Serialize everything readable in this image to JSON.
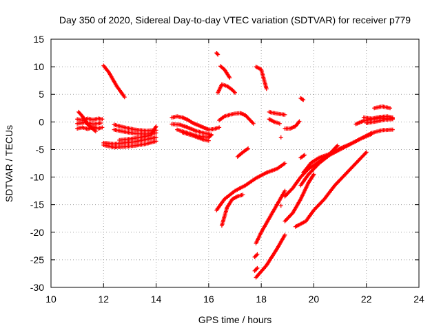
{
  "chart_data": {
    "type": "scatter",
    "title": "Day 350 of 2020, Sidereal Day-to-day VTEC variation (SDTVAR) for receiver p779",
    "xlabel": "GPS time / hours",
    "ylabel": "SDTVAR / TECUs",
    "xlim": [
      10,
      24
    ],
    "ylim": [
      -30,
      15
    ],
    "xticks": [
      10,
      12,
      14,
      16,
      18,
      20,
      22,
      24
    ],
    "yticks": [
      -30,
      -25,
      -20,
      -15,
      -10,
      -5,
      0,
      5,
      10,
      15
    ],
    "grid": true,
    "marker": "+",
    "marker_color": "#ff0000",
    "series": [
      {
        "x": [
          11.0,
          11.2,
          11.4,
          11.6,
          11.8,
          11.95
        ],
        "y": [
          0.5,
          0.3,
          0.6,
          0.4,
          0.6,
          0.5
        ]
      },
      {
        "x": [
          11.0,
          11.2,
          11.4,
          11.6,
          11.8,
          11.95
        ],
        "y": [
          -1.2,
          -1.0,
          -1.3,
          -0.9,
          -1.2,
          -1.0
        ]
      },
      {
        "x": [
          11.0,
          11.3,
          11.6,
          11.9
        ],
        "y": [
          -0.3,
          -0.1,
          -0.4,
          -0.2
        ]
      },
      {
        "x": [
          11.05,
          11.2,
          11.4,
          11.7
        ],
        "y": [
          1.8,
          1.0,
          -0.5,
          -1.7
        ]
      },
      {
        "x": [
          12.0,
          12.2,
          12.5,
          12.8
        ],
        "y": [
          10.2,
          9.0,
          6.5,
          4.5
        ]
      },
      {
        "x": [
          12.0,
          12.4,
          12.8,
          13.2,
          13.6,
          14.0
        ],
        "y": [
          -4.2,
          -4.6,
          -4.5,
          -4.3,
          -4.0,
          -3.5
        ]
      },
      {
        "x": [
          12.0,
          12.4,
          12.8,
          13.2,
          13.6,
          14.0
        ],
        "y": [
          -3.8,
          -4.0,
          -3.8,
          -3.6,
          -3.2,
          -2.8
        ]
      },
      {
        "x": [
          12.4,
          12.8,
          13.2,
          13.6,
          14.0
        ],
        "y": [
          -0.5,
          -1.0,
          -1.4,
          -1.6,
          -1.5
        ]
      },
      {
        "x": [
          12.4,
          12.8,
          13.2,
          13.6,
          14.0
        ],
        "y": [
          -1.4,
          -1.8,
          -2.1,
          -2.2,
          -2.0
        ]
      },
      {
        "x": [
          12.6,
          13.0,
          13.4,
          13.8,
          14.0
        ],
        "y": [
          -3.3,
          -3.1,
          -2.8,
          -2.4,
          -0.8
        ]
      },
      {
        "x": [
          14.6,
          14.8,
          15.0,
          15.2,
          15.4,
          15.6,
          15.8,
          16.0,
          16.2,
          16.4
        ],
        "y": [
          0.8,
          1.0,
          0.8,
          0.4,
          -0.2,
          -0.6,
          -1.0,
          -1.4,
          -1.3,
          -1.0
        ]
      },
      {
        "x": [
          14.6,
          14.9,
          15.2,
          15.5,
          15.8,
          16.1
        ],
        "y": [
          -0.4,
          -0.5,
          -1.0,
          -1.6,
          -2.0,
          -2.3
        ]
      },
      {
        "x": [
          14.8,
          15.2,
          15.6,
          16.0,
          16.1
        ],
        "y": [
          -1.4,
          -2.0,
          -2.6,
          -2.8,
          -2.4
        ]
      },
      {
        "x": [
          15.0,
          15.4,
          15.8,
          16.0
        ],
        "y": [
          -1.9,
          -2.5,
          -3.2,
          -3.4
        ]
      },
      {
        "x": [
          16.3,
          16.35
        ],
        "y": [
          12.5,
          12.2
        ]
      },
      {
        "x": [
          16.45,
          16.6,
          16.8
        ],
        "y": [
          10.1,
          9.5,
          8.0
        ]
      },
      {
        "x": [
          16.35,
          16.5,
          16.7,
          16.9,
          17.0
        ],
        "y": [
          5.3,
          6.8,
          6.5,
          5.8,
          5.3
        ]
      },
      {
        "x": [
          16.4,
          16.6,
          16.8,
          17.0,
          17.2,
          17.4,
          17.6,
          17.7
        ],
        "y": [
          0.3,
          1.0,
          1.3,
          1.5,
          1.6,
          1.2,
          0.2,
          -0.3
        ]
      },
      {
        "x": [
          17.1,
          17.3,
          17.5
        ],
        "y": [
          -6.3,
          -5.5,
          -4.8
        ]
      },
      {
        "x": [
          17.8,
          18.0,
          18.2
        ],
        "y": [
          10.0,
          9.5,
          6.0
        ]
      },
      {
        "x": [
          18.3,
          18.6,
          18.9
        ],
        "y": [
          1.8,
          1.5,
          1.3
        ]
      },
      {
        "x": [
          18.3,
          18.5,
          18.7
        ],
        "y": [
          0.5,
          0.0,
          -0.3
        ]
      },
      {
        "x": [
          18.9,
          19.1,
          19.3,
          19.45
        ],
        "y": [
          -1.2,
          -1.2,
          -0.8,
          0.1
        ]
      },
      {
        "x": [
          19.5,
          19.6
        ],
        "y": [
          4.3,
          4.0
        ]
      },
      {
        "x": [
          18.75
        ],
        "y": [
          -2.8
        ]
      },
      {
        "x": [
          19.5,
          19.65
        ],
        "y": [
          -6.5,
          -6.0
        ]
      },
      {
        "x": [
          16.3,
          16.6,
          17.0,
          17.4,
          17.8,
          18.2,
          18.6,
          18.9
        ],
        "y": [
          -16.0,
          -14.0,
          -12.5,
          -11.5,
          -10.2,
          -9.2,
          -8.5,
          -7.5
        ]
      },
      {
        "x": [
          16.5,
          16.7,
          16.9,
          17.1,
          17.3
        ],
        "y": [
          -18.8,
          -15.5,
          -14.0,
          -13.5,
          -13.2
        ]
      },
      {
        "x": [
          17.8,
          18.0,
          18.3,
          18.6,
          18.9
        ],
        "y": [
          -22.0,
          -20.0,
          -17.5,
          -15.0,
          -12.5
        ]
      },
      {
        "x": [
          17.75,
          17.85
        ],
        "y": [
          -24.5,
          -24.0
        ]
      },
      {
        "x": [
          17.75,
          17.85
        ],
        "y": [
          -27.0,
          -26.5
        ]
      },
      {
        "x": [
          17.8,
          18.2,
          18.6,
          18.9
        ],
        "y": [
          -28.2,
          -26.0,
          -23.0,
          -20.5
        ]
      },
      {
        "x": [
          18.75
        ],
        "y": [
          -15.2
        ]
      },
      {
        "x": [
          18.9,
          19.2,
          19.5,
          19.8,
          20.0
        ],
        "y": [
          -18.0,
          -16.5,
          -14.0,
          -11.0,
          -9.5
        ]
      },
      {
        "x": [
          18.9,
          19.2,
          19.5,
          19.8,
          20.2,
          20.6,
          21.0,
          21.4,
          21.8,
          22.2,
          22.6,
          23.0
        ],
        "y": [
          -13.5,
          -12.0,
          -10.0,
          -8.5,
          -7.2,
          -6.0,
          -5.0,
          -4.0,
          -3.0,
          -2.0,
          -1.5,
          -1.4
        ]
      },
      {
        "x": [
          19.5,
          19.8,
          20.2,
          20.6,
          21.0,
          21.4,
          21.8,
          22.2
        ],
        "y": [
          -11.5,
          -9.5,
          -7.5,
          -6.0,
          -4.8,
          -4.0,
          -3.0,
          -2.2
        ]
      },
      {
        "x": [
          19.6,
          19.9,
          20.2,
          20.6,
          20.9
        ],
        "y": [
          -9.2,
          -7.4,
          -6.5,
          -5.8,
          -4.3
        ]
      },
      {
        "x": [
          19.3,
          19.7,
          20.0,
          20.4,
          20.8,
          21.2,
          21.6,
          22.0
        ],
        "y": [
          -19.0,
          -18.0,
          -16.0,
          -14.0,
          -11.5,
          -9.5,
          -7.5,
          -5.5
        ]
      },
      {
        "x": [
          21.6,
          21.9,
          22.2,
          22.5,
          22.8,
          23.0
        ],
        "y": [
          -0.4,
          0.2,
          0.5,
          0.7,
          0.6,
          0.6
        ]
      },
      {
        "x": [
          21.9,
          22.2,
          22.5,
          22.8,
          23.0
        ],
        "y": [
          0.8,
          0.6,
          0.9,
          1.0,
          0.8
        ]
      },
      {
        "x": [
          22.0,
          22.4,
          22.7,
          23.0
        ],
        "y": [
          -0.2,
          0.1,
          0.4,
          0.5
        ]
      },
      {
        "x": [
          22.3,
          22.6,
          22.9
        ],
        "y": [
          2.5,
          2.8,
          2.5
        ]
      }
    ]
  }
}
